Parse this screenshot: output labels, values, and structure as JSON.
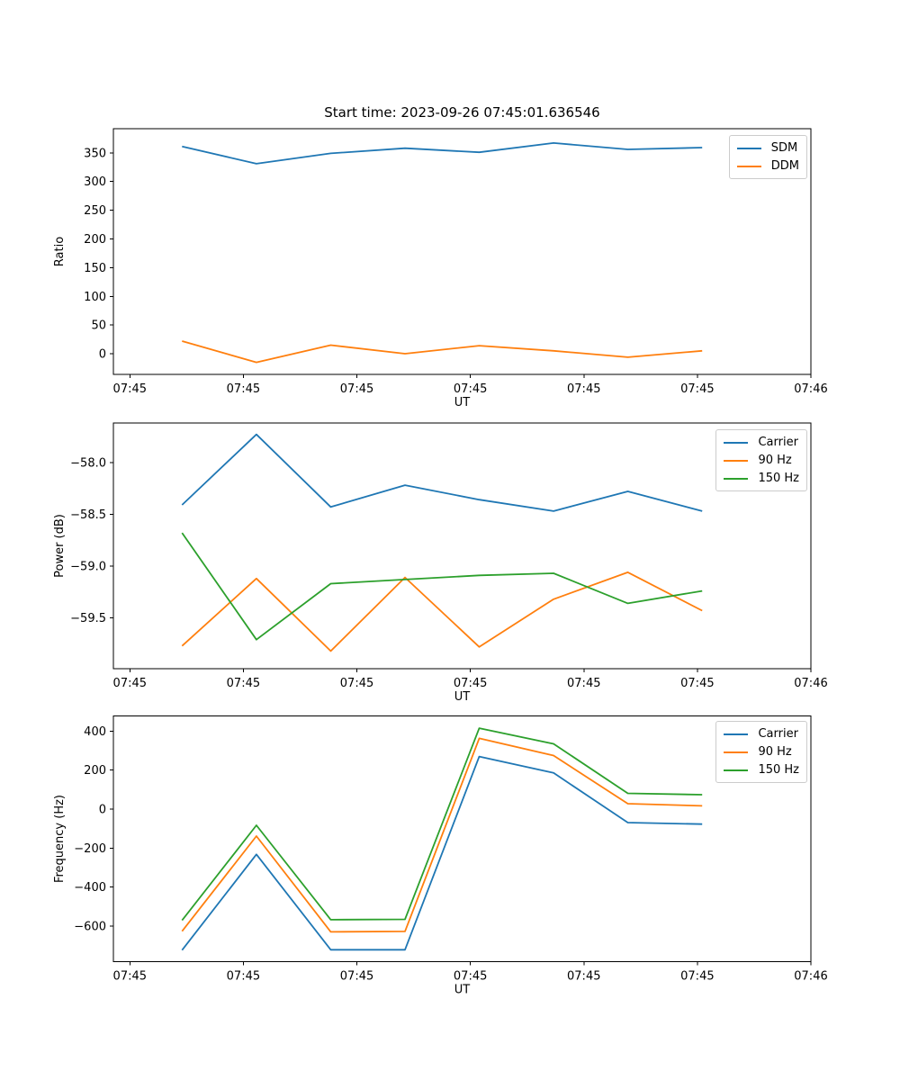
{
  "figure": {
    "title": "Start time: 2023-09-26 07:45:01.636546"
  },
  "chart_data": [
    {
      "id": "ratio",
      "type": "line",
      "title": "Start time: 2023-09-26 07:45:01.636546",
      "xlabel": "UT",
      "ylabel": "Ratio",
      "legend_position": "upper right",
      "grid": false,
      "x_seconds_after_0745": [
        4.6,
        11.15,
        17.7,
        24.24,
        30.78,
        37.33,
        43.87,
        50.42
      ],
      "xlim_seconds": [
        -1.45,
        60
      ],
      "x_ticks": {
        "seconds": [
          0,
          10,
          20,
          30,
          40,
          50,
          60
        ],
        "labels": [
          "07:45",
          "07:45",
          "07:45",
          "07:45",
          "07:45",
          "07:45",
          "07:46"
        ]
      },
      "ylim": [
        -36,
        392
      ],
      "y_ticks": {
        "values": [
          0,
          50,
          100,
          150,
          200,
          250,
          300,
          350
        ],
        "labels": [
          "0",
          "50",
          "100",
          "150",
          "200",
          "250",
          "300",
          "350"
        ]
      },
      "series": [
        {
          "name": "SDM",
          "color": "#1f77b4",
          "values": [
            361,
            331,
            349,
            358,
            351,
            367,
            356,
            359
          ]
        },
        {
          "name": "DDM",
          "color": "#ff7f0e",
          "values": [
            22,
            -15,
            15,
            0,
            14,
            5,
            -6,
            5
          ]
        }
      ]
    },
    {
      "id": "power",
      "type": "line",
      "xlabel": "UT",
      "ylabel": "Power (dB)",
      "legend_position": "upper right",
      "grid": false,
      "x_seconds_after_0745": [
        4.6,
        11.15,
        17.7,
        24.24,
        30.78,
        37.33,
        43.87,
        50.42
      ],
      "xlim_seconds": [
        -1.45,
        60
      ],
      "x_ticks": {
        "seconds": [
          0,
          10,
          20,
          30,
          40,
          50,
          60
        ],
        "labels": [
          "07:45",
          "07:45",
          "07:45",
          "07:45",
          "07:45",
          "07:45",
          "07:46"
        ]
      },
      "ylim": [
        -59.99,
        -57.62
      ],
      "y_ticks": {
        "values": [
          -58.0,
          -58.5,
          -59.0,
          -59.5
        ],
        "labels": [
          "−58.0",
          "−58.5",
          "−59.0",
          "−59.5"
        ]
      },
      "series": [
        {
          "name": "Carrier",
          "color": "#1f77b4",
          "values": [
            -58.41,
            -57.73,
            -58.43,
            -58.22,
            -58.36,
            -58.47,
            -58.28,
            -58.47
          ]
        },
        {
          "name": "90 Hz",
          "color": "#ff7f0e",
          "values": [
            -59.77,
            -59.12,
            -59.82,
            -59.11,
            -59.78,
            -59.32,
            -59.06,
            -59.43
          ]
        },
        {
          "name": "150 Hz",
          "color": "#2ca02c",
          "values": [
            -58.68,
            -59.71,
            -59.17,
            -59.13,
            -59.09,
            -59.07,
            -59.36,
            -59.24
          ]
        }
      ]
    },
    {
      "id": "frequency",
      "type": "line",
      "xlabel": "UT",
      "ylabel": "Frequency (Hz)",
      "legend_position": "upper right",
      "grid": false,
      "x_seconds_after_0745": [
        4.6,
        11.15,
        17.7,
        24.24,
        30.78,
        37.33,
        43.87,
        50.42
      ],
      "xlim_seconds": [
        -1.45,
        60
      ],
      "x_ticks": {
        "seconds": [
          0,
          10,
          20,
          30,
          40,
          50,
          60
        ],
        "labels": [
          "07:45",
          "07:45",
          "07:45",
          "07:45",
          "07:45",
          "07:45",
          "07:46"
        ]
      },
      "ylim": [
        -781,
        477
      ],
      "y_ticks": {
        "values": [
          400,
          200,
          0,
          -200,
          -400,
          -600
        ],
        "labels": [
          "400",
          "200",
          "0",
          "−200",
          "−400",
          "−600"
        ]
      },
      "series": [
        {
          "name": "Carrier",
          "color": "#1f77b4",
          "values": [
            -723,
            -232,
            -721,
            -721,
            270,
            186,
            -69,
            -77
          ]
        },
        {
          "name": "90 Hz",
          "color": "#ff7f0e",
          "values": [
            -626,
            -138,
            -629,
            -627,
            363,
            275,
            28,
            17
          ]
        },
        {
          "name": "150 Hz",
          "color": "#2ca02c",
          "values": [
            -570,
            -83,
            -567,
            -565,
            415,
            335,
            81,
            74
          ]
        }
      ]
    }
  ]
}
